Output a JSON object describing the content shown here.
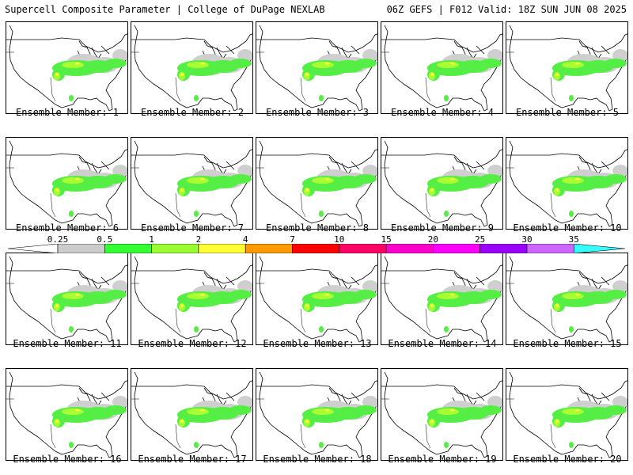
{
  "header": {
    "left": "Supercell Composite Parameter | College of DuPage NEXLAB",
    "right": "06Z GEFS | F012 Valid: 18Z SUN JUN 08 2025"
  },
  "members": [
    "Ensemble Member: 1",
    "Ensemble Member: 2",
    "Ensemble Member: 3",
    "Ensemble Member: 4",
    "Ensemble Member: 5",
    "Ensemble Member: 6",
    "Ensemble Member: 7",
    "Ensemble Member: 8",
    "Ensemble Member: 9",
    "Ensemble Member: 10",
    "Ensemble Member: 11",
    "Ensemble Member: 12",
    "Ensemble Member: 13",
    "Ensemble Member: 14",
    "Ensemble Member: 15",
    "Ensemble Member: 16",
    "Ensemble Member: 17",
    "Ensemble Member: 18",
    "Ensemble Member: 19",
    "Ensemble Member: 20"
  ],
  "scale": {
    "ticks": [
      "0.25",
      "0.5",
      "1",
      "2",
      "4",
      "7",
      "10",
      "15",
      "20",
      "25",
      "30",
      "35"
    ],
    "colors": [
      "#cccccc",
      "#33ff33",
      "#99ff33",
      "#ffff33",
      "#ff9900",
      "#ff0000",
      "#ff0066",
      "#ff00cc",
      "#ff00ff",
      "#9900ff",
      "#cc66ff",
      "#33ffff"
    ]
  }
}
